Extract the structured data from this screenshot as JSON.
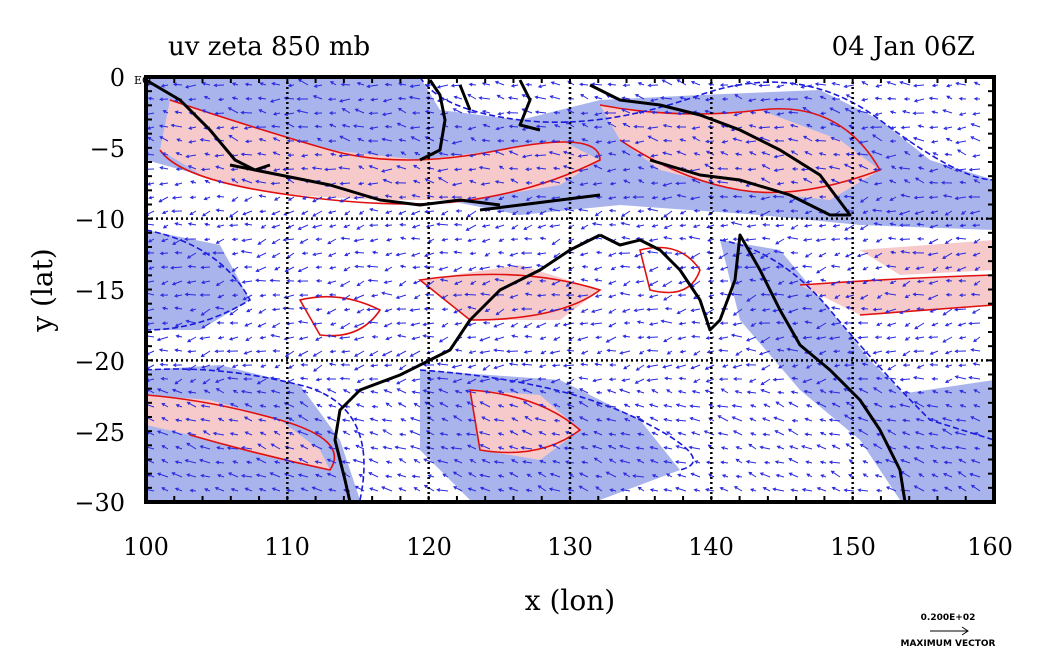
{
  "title_left": "uv zeta 850 mb",
  "title_right": "04 Jan 06Z",
  "xlabel": "x (lon)",
  "ylabel": "y (lat)",
  "eq_label": "EQ",
  "x_ticks": [
    "100",
    "110",
    "120",
    "130",
    "140",
    "150",
    "160"
  ],
  "y_ticks": [
    "0",
    "−5",
    "−10",
    "−15",
    "−20",
    "−25",
    "−30"
  ],
  "max_vector": {
    "value": "0.200E+02",
    "label": "MAXIMUM VECTOR"
  },
  "colors": {
    "positive_fill": "#f6caca",
    "negative_fill": "#a9b4ec",
    "positive_contour": "#e01010",
    "negative_contour": "#1a1adc",
    "vectors": "#2a2ae0",
    "coast": "#000000"
  },
  "map": {
    "lon_range": [
      100,
      160
    ],
    "lat_range": [
      -30,
      0
    ],
    "grid_lon": [
      110,
      120,
      130,
      140,
      150
    ],
    "grid_lat": [
      -10,
      -20
    ]
  }
}
